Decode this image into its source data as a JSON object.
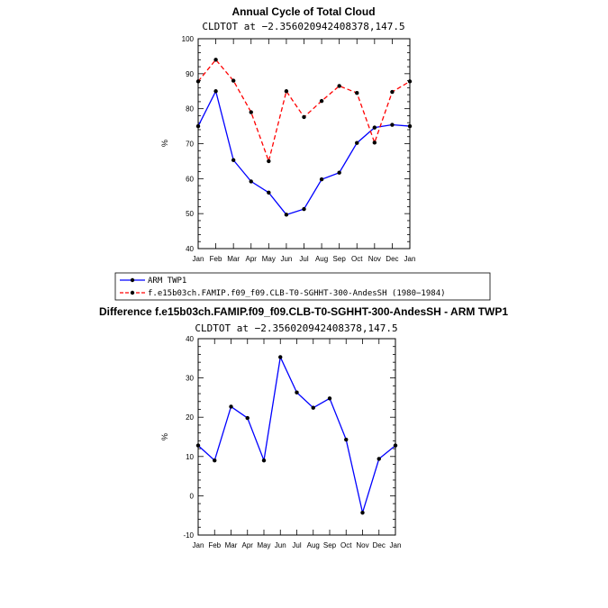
{
  "chart_data": [
    {
      "type": "line",
      "title": "Annual Cycle of Total Cloud",
      "subtitle": "CLDTOT at −2.356020942408378,147.5",
      "ylabel": "%",
      "ylim": [
        40,
        100
      ],
      "yticks": [
        40,
        50,
        60,
        70,
        80,
        90,
        100
      ],
      "categories": [
        "Jan",
        "Feb",
        "Mar",
        "Apr",
        "May",
        "Jun",
        "Jul",
        "Aug",
        "Sep",
        "Oct",
        "Nov",
        "Dec",
        "Jan"
      ],
      "series": [
        {
          "name": "ARM TWP1",
          "color": "#0000ff",
          "style": "solid",
          "values": [
            75.0,
            85.0,
            65.3,
            59.2,
            56.0,
            49.7,
            51.3,
            59.8,
            61.7,
            70.2,
            74.6,
            75.4,
            75.0
          ]
        },
        {
          "name": "f.e15b03ch.FAMIP.f09_f09.CLB-T0-SGHHT-300-AndesSH (1980−1984)",
          "color": "#ff0000",
          "style": "dashed",
          "values": [
            87.8,
            94.0,
            88.0,
            79.0,
            65.0,
            85.0,
            77.6,
            82.2,
            86.5,
            84.5,
            70.3,
            84.8,
            87.8
          ]
        }
      ],
      "legend": "bottom-left"
    },
    {
      "type": "line",
      "title": "Difference f.e15b03ch.FAMIP.f09_f09.CLB-T0-SGHHT-300-AndesSH - ARM TWP1",
      "subtitle": "CLDTOT at −2.356020942408378,147.5",
      "ylabel": "%",
      "ylim": [
        -10,
        40
      ],
      "yticks": [
        -10,
        0,
        10,
        20,
        30,
        40
      ],
      "categories": [
        "Jan",
        "Feb",
        "Mar",
        "Apr",
        "May",
        "Jun",
        "Jul",
        "Aug",
        "Sep",
        "Oct",
        "Nov",
        "Dec",
        "Jan"
      ],
      "series": [
        {
          "name": "Difference",
          "color": "#0000ff",
          "style": "solid",
          "values": [
            12.8,
            9.0,
            22.7,
            19.8,
            9.0,
            35.3,
            26.3,
            22.4,
            24.8,
            14.3,
            -4.3,
            9.4,
            12.8
          ]
        }
      ]
    }
  ]
}
